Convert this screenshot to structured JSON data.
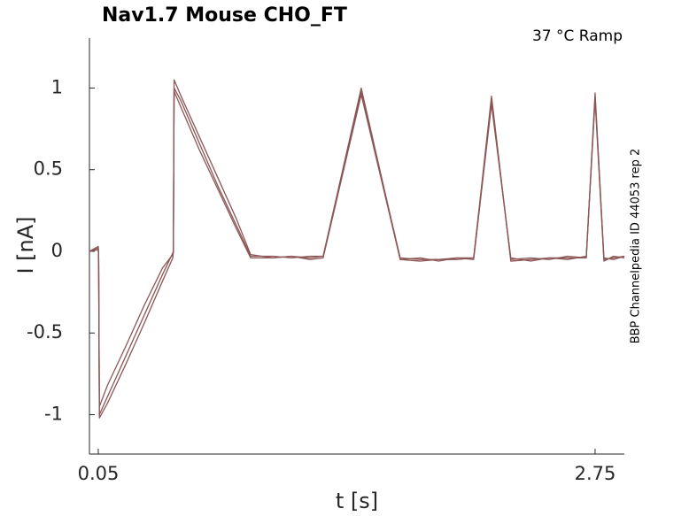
{
  "chart_data": {
    "type": "line",
    "title": "Nav1.7  Mouse  CHO_FT",
    "annotation": "37 °C  Ramp",
    "side_note": "BBP Channelpedia ID 44053 rep 2",
    "xlabel": "t [s]",
    "ylabel": "I [nA]",
    "x": [
      0.002,
      0.05,
      0.052,
      0.056,
      0.1,
      0.2,
      0.3,
      0.4,
      0.455,
      0.458,
      0.462,
      0.5,
      0.6,
      0.7,
      0.8,
      0.878,
      1.0,
      1.1,
      1.2,
      1.272,
      1.479,
      1.691,
      1.8,
      1.9,
      2.0,
      2.09,
      2.187,
      2.292,
      2.4,
      2.5,
      2.6,
      2.702,
      2.75,
      2.798,
      2.85,
      2.909
    ],
    "series": [
      {
        "color": "#8c5656",
        "values": [
          0,
          0.02,
          -0.05,
          -1.0,
          -0.89,
          -0.64,
          -0.39,
          -0.14,
          -0.01,
          0.0,
          1.05,
          0.95,
          0.7,
          0.45,
          0.2,
          -0.02,
          -0.04,
          -0.03,
          -0.04,
          -0.03,
          1.0,
          -0.05,
          -0.06,
          -0.05,
          -0.04,
          -0.04,
          0.95,
          -0.06,
          -0.05,
          -0.04,
          -0.04,
          -0.04,
          0.97,
          -0.05,
          -0.04,
          -0.03
        ]
      },
      {
        "color": "#8c5656",
        "values": [
          0,
          0.03,
          -0.04,
          -0.95,
          -0.82,
          -0.58,
          -0.33,
          -0.1,
          -0.02,
          0.0,
          1.0,
          0.92,
          0.66,
          0.4,
          0.16,
          -0.03,
          -0.03,
          -0.04,
          -0.03,
          -0.03,
          0.98,
          -0.04,
          -0.05,
          -0.05,
          -0.05,
          -0.04,
          0.92,
          -0.05,
          -0.04,
          -0.05,
          -0.03,
          -0.04,
          0.95,
          -0.04,
          -0.05,
          -0.03
        ]
      },
      {
        "color": "#8c5656",
        "values": [
          0,
          0.01,
          -0.05,
          -1.02,
          -0.93,
          -0.69,
          -0.44,
          -0.18,
          -0.04,
          0.0,
          0.98,
          0.88,
          0.62,
          0.38,
          0.14,
          -0.04,
          -0.04,
          -0.03,
          -0.05,
          -0.04,
          0.96,
          -0.05,
          -0.04,
          -0.06,
          -0.04,
          -0.05,
          0.9,
          -0.04,
          -0.06,
          -0.04,
          -0.05,
          -0.03,
          0.93,
          -0.06,
          -0.03,
          -0.04
        ]
      }
    ],
    "xlim": [
      0.002,
      2.909
    ],
    "ylim": [
      -1.225,
      1.306
    ],
    "xticks": [
      0.05,
      2.75
    ],
    "yticks": [
      -1,
      -0.5,
      0,
      0.5,
      1
    ]
  }
}
